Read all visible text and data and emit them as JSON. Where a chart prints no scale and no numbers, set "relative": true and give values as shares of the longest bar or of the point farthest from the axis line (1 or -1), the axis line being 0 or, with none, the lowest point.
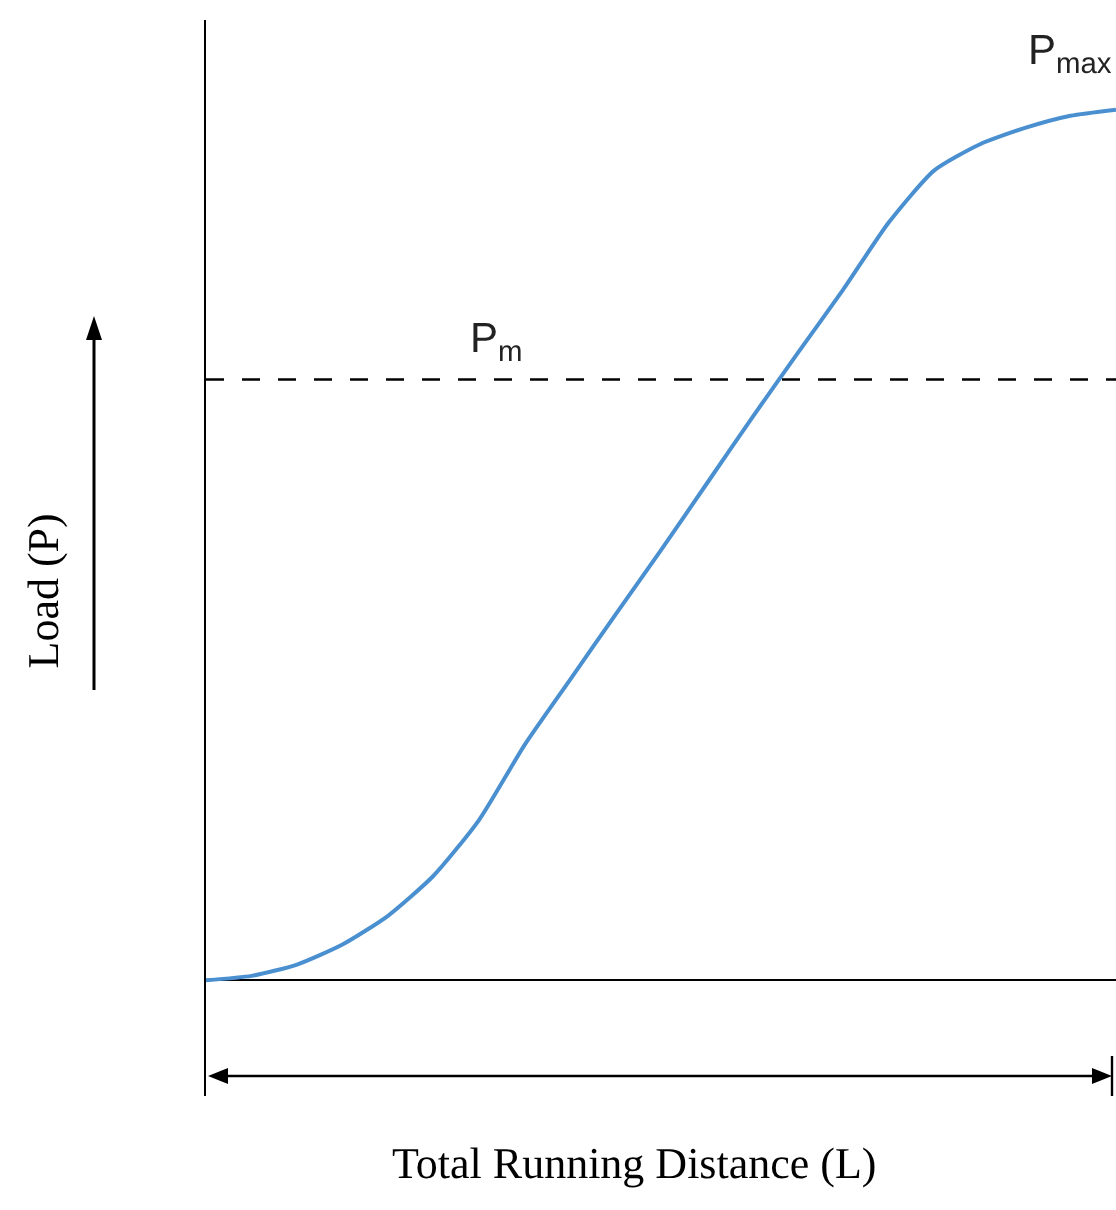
{
  "chart_data": {
    "type": "line",
    "relative": true,
    "xlabel": "Total Running Distance (L)",
    "ylabel": "Load (P)",
    "categories": [
      null,
      null,
      null,
      null,
      null,
      null,
      null,
      null,
      null,
      null,
      null,
      null,
      null,
      null,
      null,
      null,
      null,
      null,
      null,
      null,
      null
    ],
    "series": [
      {
        "color": "#4a90d0",
        "values": [
          0,
          0.005,
          0.018,
          0.041,
          0.074,
          0.12,
          0.184,
          0.27,
          0.345,
          0.42,
          0.494,
          0.57,
          0.646,
          0.72,
          0.793,
          0.87,
          0.93,
          0.96,
          0.979,
          0.993,
          1
        ]
      }
    ],
    "ref_lines": [
      {
        "axis": "y",
        "value": 0.69,
        "label": "P$_{m}$",
        "color": "#000000",
        "line_style": "dashed"
      }
    ],
    "annotations": [
      "P$_{max}$"
    ],
    "grid": false,
    "marker": "none",
    "line_style": "solid"
  }
}
